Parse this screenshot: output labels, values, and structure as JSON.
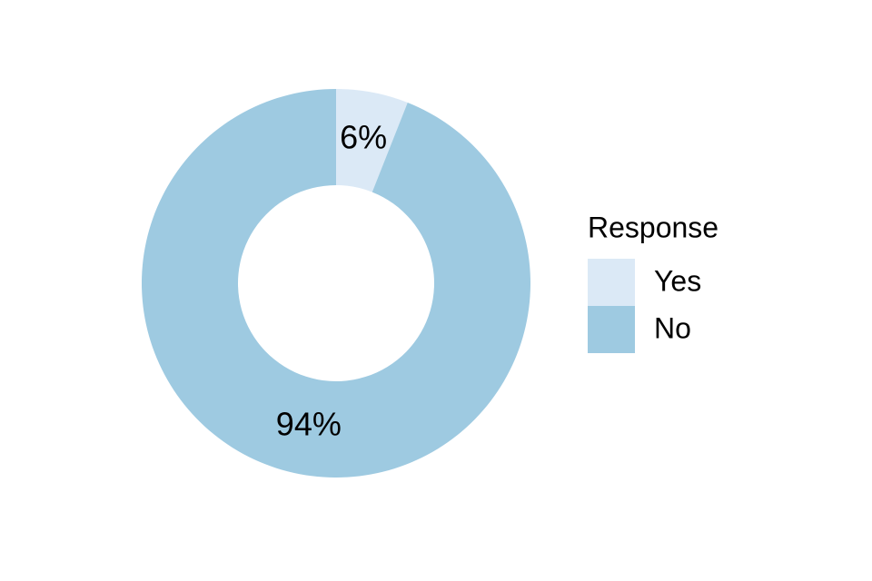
{
  "chart_data": {
    "type": "pie",
    "categories": [
      "Yes",
      "No"
    ],
    "values": [
      6,
      94
    ],
    "value_labels": [
      "6%",
      "94%"
    ],
    "colors": [
      "#dbe9f6",
      "#9ecae1"
    ],
    "legend_title": "Response",
    "legend": "right"
  }
}
